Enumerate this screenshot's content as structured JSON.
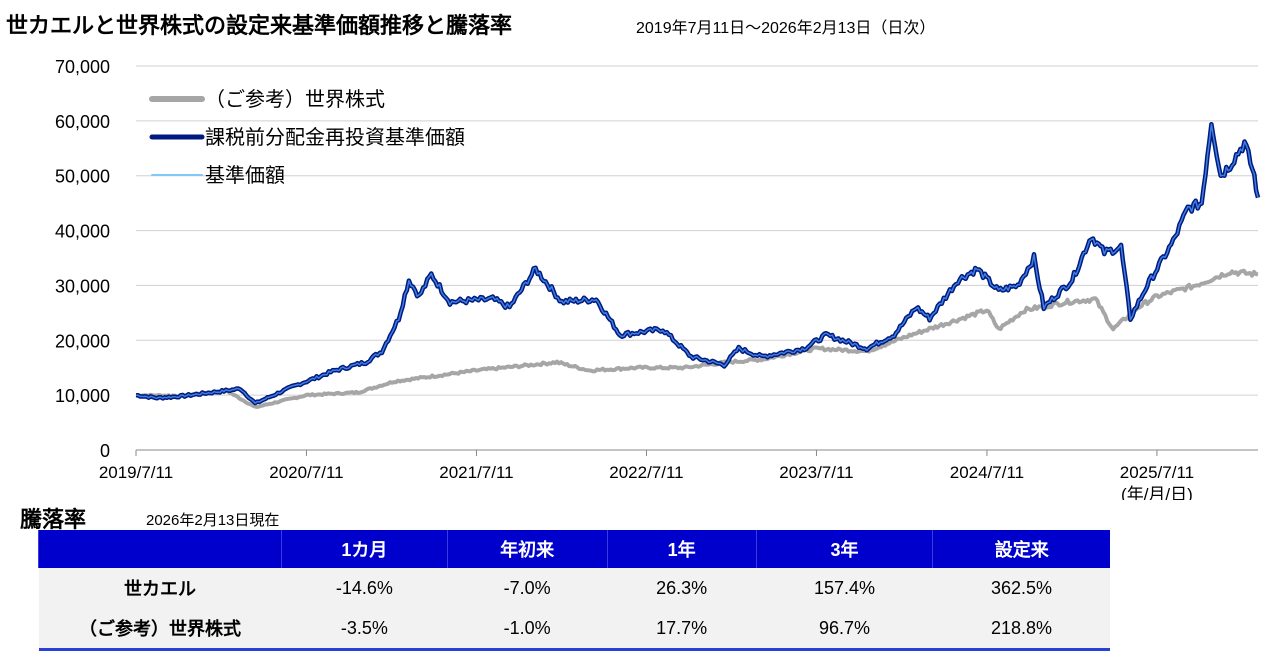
{
  "chart_data": {
    "type": "line",
    "title": "世カエルと世界株式の設定来基準価額推移と騰落率",
    "subtitle": "2019年7月11日～2026年2月13日（日次）",
    "xlabel": "(年/月/日)",
    "ylim": [
      0,
      70000
    ],
    "yticks": [
      "0",
      "10,000",
      "20,000",
      "30,000",
      "40,000",
      "50,000",
      "60,000",
      "70,000"
    ],
    "xticks": [
      "2019/7/11",
      "2020/7/11",
      "2021/7/11",
      "2022/7/11",
      "2023/7/11",
      "2024/7/11",
      "2025/7/11"
    ],
    "xrange": [
      "2019-07-11",
      "2026-02-13"
    ],
    "grid": true,
    "legend_placement": "top-left",
    "series": [
      {
        "name": "（ご参考）世界株式",
        "color": "#a6a6a6",
        "points": [
          [
            "2019-07-11",
            10000
          ],
          [
            "2019-10-15",
            9900
          ],
          [
            "2020-01-20",
            10900
          ],
          [
            "2020-03-23",
            7800
          ],
          [
            "2020-07-11",
            10000
          ],
          [
            "2020-10-30",
            10500
          ],
          [
            "2021-01-15",
            12500
          ],
          [
            "2021-07-11",
            14500
          ],
          [
            "2021-12-31",
            16000
          ],
          [
            "2022-03-10",
            14500
          ],
          [
            "2022-06-20",
            15000
          ],
          [
            "2022-09-30",
            15000
          ],
          [
            "2022-12-31",
            16000
          ],
          [
            "2023-03-15",
            16500
          ],
          [
            "2023-07-11",
            18500
          ],
          [
            "2023-10-27",
            18000
          ],
          [
            "2024-01-31",
            21000
          ],
          [
            "2024-07-11",
            25500
          ],
          [
            "2024-08-05",
            22000
          ],
          [
            "2024-09-30",
            25500
          ],
          [
            "2024-12-31",
            27000
          ],
          [
            "2025-03-01",
            27500
          ],
          [
            "2025-04-08",
            22000
          ],
          [
            "2025-05-31",
            26000
          ],
          [
            "2025-07-11",
            28000
          ],
          [
            "2025-10-01",
            30000
          ],
          [
            "2025-12-15",
            32500
          ],
          [
            "2026-02-13",
            32000
          ]
        ]
      },
      {
        "name": "課税前分配金再投資基準価額",
        "color": "#001a80",
        "points": [
          [
            "2019-07-11",
            10000
          ],
          [
            "2019-08-25",
            9500
          ],
          [
            "2019-10-15",
            9800
          ],
          [
            "2020-01-20",
            10800
          ],
          [
            "2020-02-20",
            11200
          ],
          [
            "2020-03-23",
            8500
          ],
          [
            "2020-06-10",
            11500
          ],
          [
            "2020-07-11",
            12500
          ],
          [
            "2020-09-10",
            14500
          ],
          [
            "2020-11-15",
            16000
          ],
          [
            "2020-12-20",
            18000
          ],
          [
            "2021-01-25",
            24000
          ],
          [
            "2021-02-16",
            31000
          ],
          [
            "2021-03-10",
            28000
          ],
          [
            "2021-04-05",
            32000
          ],
          [
            "2021-05-15",
            27000
          ],
          [
            "2021-08-15",
            27500
          ],
          [
            "2021-09-20",
            26000
          ],
          [
            "2021-11-15",
            33000
          ],
          [
            "2022-01-10",
            27000
          ],
          [
            "2022-03-25",
            27500
          ],
          [
            "2022-05-15",
            21000
          ],
          [
            "2022-08-15",
            22000
          ],
          [
            "2022-10-15",
            17000
          ],
          [
            "2022-12-25",
            15500
          ],
          [
            "2023-01-25",
            18500
          ],
          [
            "2023-03-15",
            17000
          ],
          [
            "2023-06-15",
            18500
          ],
          [
            "2023-08-01",
            21000
          ],
          [
            "2023-10-27",
            18500
          ],
          [
            "2023-12-25",
            21000
          ],
          [
            "2024-02-10",
            26000
          ],
          [
            "2024-03-10",
            24000
          ],
          [
            "2024-05-10",
            31000
          ],
          [
            "2024-06-20",
            33000
          ],
          [
            "2024-08-05",
            29000
          ],
          [
            "2024-09-15",
            30000
          ],
          [
            "2024-10-20",
            35000
          ],
          [
            "2024-11-10",
            26000
          ],
          [
            "2025-01-10",
            31000
          ],
          [
            "2025-02-20",
            39000
          ],
          [
            "2025-03-20",
            36000
          ],
          [
            "2025-04-25",
            37000
          ],
          [
            "2025-05-15",
            24000
          ],
          [
            "2025-06-20",
            30000
          ],
          [
            "2025-08-15",
            38000
          ],
          [
            "2025-09-15",
            44000
          ],
          [
            "2025-10-15",
            45000
          ],
          [
            "2025-11-05",
            60000
          ],
          [
            "2025-11-25",
            50000
          ],
          [
            "2025-12-15",
            52000
          ],
          [
            "2026-01-15",
            56000
          ],
          [
            "2026-02-05",
            50000
          ],
          [
            "2026-02-13",
            46000
          ]
        ]
      },
      {
        "name": "基準価額",
        "color": "#7fc8f8",
        "same_as": "課税前分配金再投資基準価額"
      }
    ]
  },
  "performance": {
    "title": "騰落率",
    "date": "2026年2月13日現在",
    "columns": [
      "",
      "1カ月",
      "年初来",
      "1年",
      "3年",
      "設定来"
    ],
    "rows": [
      {
        "label": "世カエル",
        "values": [
          "-14.6%",
          "-7.0%",
          "26.3%",
          "157.4%",
          "362.5%"
        ]
      },
      {
        "label": "（ご参考）世界株式",
        "values": [
          "-3.5%",
          "-1.0%",
          "17.7%",
          "96.7%",
          "218.8%"
        ]
      }
    ]
  }
}
